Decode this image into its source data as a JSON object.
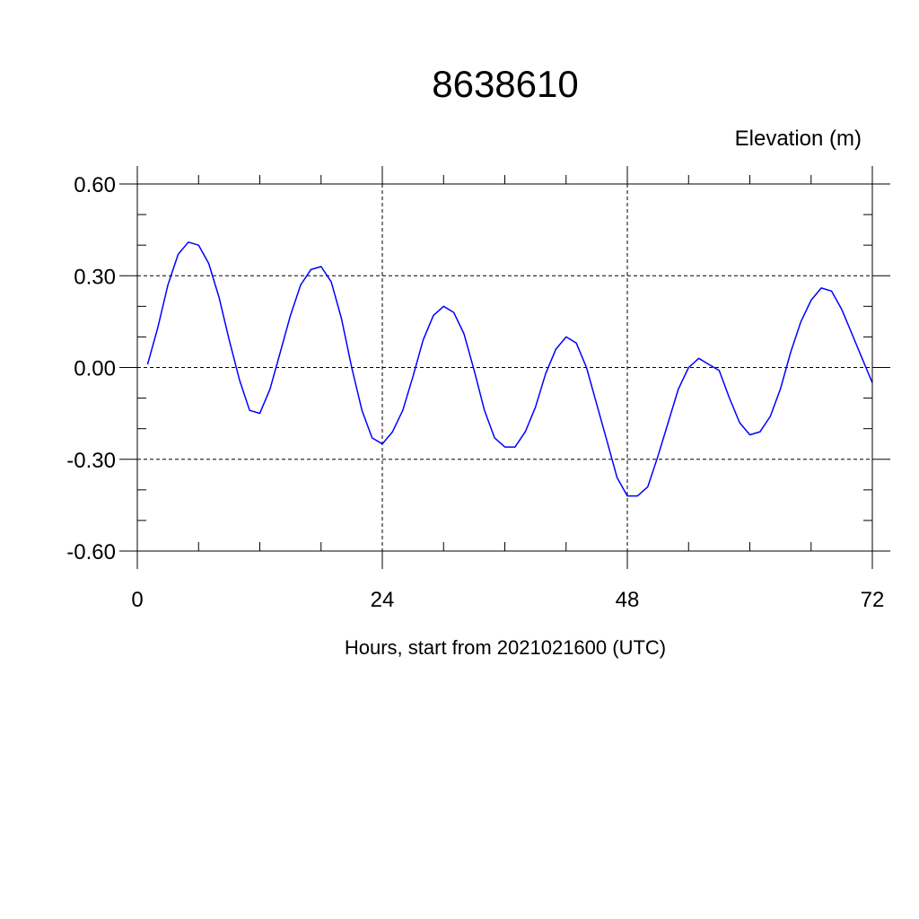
{
  "chart_data": {
    "type": "line",
    "title": "8638610",
    "ylabel": "Elevation (m)",
    "xlabel": "Hours, start from 2021021600 (UTC)",
    "xlim": [
      0,
      72
    ],
    "ylim": [
      -0.6,
      0.6
    ],
    "x_ticks": [
      0,
      24,
      48,
      72
    ],
    "x_tick_labels": [
      "0",
      "24",
      "48",
      "72"
    ],
    "y_ticks": [
      0.6,
      0.3,
      0.0,
      -0.3,
      -0.6
    ],
    "y_tick_labels": [
      "0.60",
      "0.30",
      "0.00",
      "-0.30",
      "-0.60"
    ],
    "grid": true,
    "series": [
      {
        "color": "#0000ff",
        "x": [
          1,
          2,
          3,
          4,
          5,
          6,
          7,
          8,
          9,
          10,
          11,
          12,
          13,
          14,
          15,
          16,
          17,
          18,
          19,
          20,
          21,
          22,
          23,
          24,
          25,
          26,
          27,
          28,
          29,
          30,
          31,
          32,
          33,
          34,
          35,
          36,
          37,
          38,
          39,
          40,
          41,
          42,
          43,
          44,
          45,
          46,
          47,
          48,
          49,
          50,
          51,
          52,
          53,
          54,
          55,
          56,
          57,
          58,
          59,
          60,
          61,
          62,
          63,
          64,
          65,
          66,
          67,
          68,
          69,
          70,
          71,
          72
        ],
        "values": [
          0.01,
          0.13,
          0.27,
          0.37,
          0.41,
          0.4,
          0.34,
          0.23,
          0.09,
          -0.04,
          -0.14,
          -0.15,
          -0.07,
          0.05,
          0.17,
          0.27,
          0.32,
          0.33,
          0.28,
          0.16,
          0.0,
          -0.14,
          -0.23,
          -0.25,
          -0.21,
          -0.14,
          -0.03,
          0.09,
          0.17,
          0.2,
          0.18,
          0.11,
          -0.01,
          -0.14,
          -0.23,
          -0.26,
          -0.26,
          -0.21,
          -0.13,
          -0.02,
          0.06,
          0.1,
          0.08,
          0.0,
          -0.12,
          -0.24,
          -0.36,
          -0.42,
          -0.42,
          -0.39,
          -0.29,
          -0.18,
          -0.07,
          0.0,
          0.03,
          0.01,
          -0.01,
          -0.1,
          -0.18,
          -0.22,
          -0.21,
          -0.16,
          -0.07,
          0.05,
          0.15,
          0.22,
          0.26,
          0.25,
          0.19,
          0.11,
          0.03,
          -0.05
        ]
      }
    ]
  }
}
